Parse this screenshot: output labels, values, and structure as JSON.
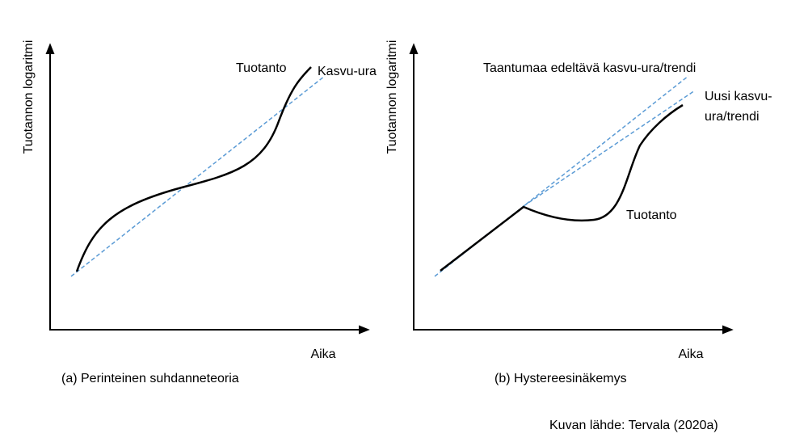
{
  "panels": [
    {
      "caption": "(a) Perinteinen suhdanneteoria",
      "y_label": "Tuotannon logaritmi",
      "x_label": "Aika",
      "annotations": [
        "Tuotanto",
        "Kasvu-ura"
      ]
    },
    {
      "caption": "(b) Hystereesinäkemys",
      "y_label": "Tuotannon logaritmi",
      "x_label": "Aika",
      "annotations": [
        "Taantumaa edeltävä kasvu-ura/trendi",
        "Uusi kasvu-",
        "ura/trendi",
        "Tuotanto"
      ]
    }
  ],
  "source": "Kuvan lähde: Tervala (2020a)"
}
